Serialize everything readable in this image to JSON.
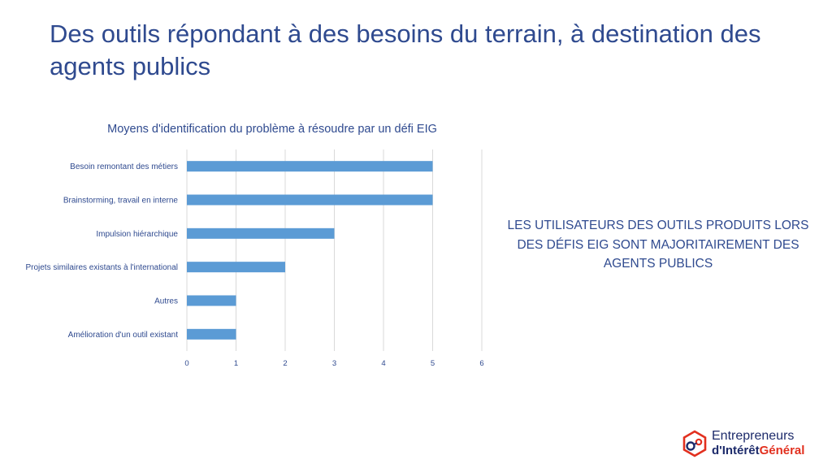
{
  "slide": {
    "title": "Des outils répondant à des besoins du terrain, à destination des agents publics",
    "callout": "LES UTILISATEURS DES OUTILS PRODUITS LORS DES DÉFIS EIG SONT MAJORITAIREMENT DES AGENTS PUBLICS"
  },
  "logo": {
    "line1": "Entrepreneurs",
    "line2_part1": "d'Intérêt",
    "line2_part2": "Général",
    "colors": {
      "blue": "#1d2b6b",
      "red": "#e2301f"
    }
  },
  "chart_data": {
    "type": "bar",
    "orientation": "horizontal",
    "title": "Moyens d'identification du problème à résoudre par un défi EIG",
    "categories": [
      "Besoin remontant des métiers",
      "Brainstorming, travail en interne",
      "Impulsion hiérarchique",
      "Projets similaires existants à l'international",
      "Autres",
      "Amélioration d'un outil existant"
    ],
    "values": [
      5,
      5,
      3,
      2,
      1,
      1
    ],
    "xlim": [
      0,
      6
    ],
    "xticks": [
      "0",
      "1",
      "2",
      "3",
      "4",
      "5",
      "6"
    ],
    "grid": true,
    "legend": "none",
    "bar_color": "#5b9bd5"
  }
}
